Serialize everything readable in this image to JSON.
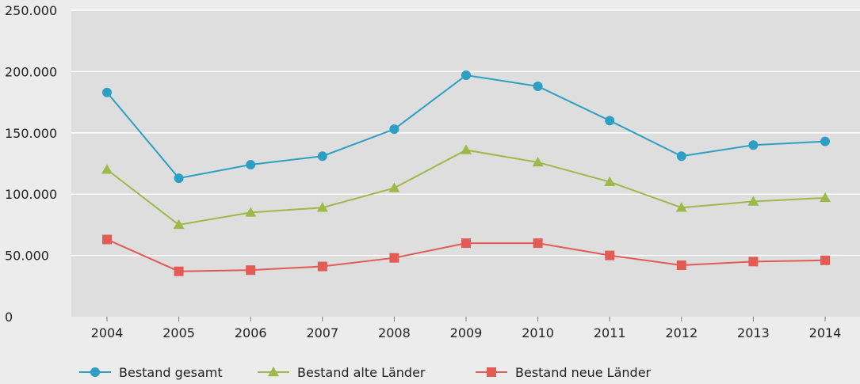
{
  "chart_data": {
    "type": "line",
    "categories": [
      "2004",
      "2005",
      "2006",
      "2007",
      "2008",
      "2009",
      "2010",
      "2011",
      "2012",
      "2013",
      "2014"
    ],
    "ylim": [
      0,
      250000
    ],
    "yticks": [
      0,
      50000,
      100000,
      150000,
      200000,
      250000
    ],
    "ytick_labels": [
      "0",
      "50.000",
      "100.000",
      "150.000",
      "200.000",
      "250.000"
    ],
    "grid": "horizontal",
    "legend_position": "bottom",
    "series": [
      {
        "name": "Bestand gesamt",
        "color": "#2e9fc4",
        "marker": "circle",
        "values": [
          183000,
          113000,
          124000,
          131000,
          153000,
          197000,
          188000,
          160000,
          131000,
          140000,
          143000
        ]
      },
      {
        "name": "Bestand alte Länder",
        "color": "#9fb84a",
        "marker": "triangle",
        "values": [
          120000,
          75000,
          85000,
          89000,
          105000,
          136000,
          126000,
          110000,
          89000,
          94000,
          97000
        ]
      },
      {
        "name": "Bestand neue Länder",
        "color": "#e35b55",
        "marker": "square",
        "values": [
          63000,
          37000,
          38000,
          41000,
          48000,
          60000,
          60000,
          50000,
          42000,
          45000,
          46000
        ]
      }
    ]
  }
}
